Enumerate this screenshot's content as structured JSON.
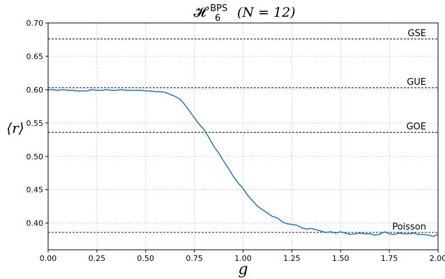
{
  "chart_data": {
    "type": "line",
    "title": {
      "symbol": "𝓗",
      "superscript": "BPS",
      "subscript": "6",
      "suffix": " (N = 12)"
    },
    "xlabel": "g",
    "ylabel": "⟨r⟩",
    "xlim": [
      0.0,
      2.0
    ],
    "ylim": [
      0.36,
      0.7
    ],
    "x_ticks": [
      0.0,
      0.25,
      0.5,
      0.75,
      1.0,
      1.25,
      1.5,
      1.75,
      2.0
    ],
    "x_tick_labels": [
      "0.00",
      "0.25",
      "0.50",
      "0.75",
      "1.00",
      "1.25",
      "1.50",
      "1.75",
      "2.00"
    ],
    "y_ticks": [
      0.4,
      0.45,
      0.5,
      0.55,
      0.6,
      0.65,
      0.7
    ],
    "y_tick_labels": [
      "0.40",
      "0.45",
      "0.50",
      "0.55",
      "0.60",
      "0.65",
      "0.70"
    ],
    "grid": true,
    "line_color": "#1f77b4",
    "reference_lines": [
      {
        "label": "GSE",
        "value": 0.676
      },
      {
        "label": "GUE",
        "value": 0.603
      },
      {
        "label": "GOE",
        "value": 0.536
      },
      {
        "label": "Poisson",
        "value": 0.386
      }
    ],
    "series": [
      {
        "x": [
          0.0,
          0.025,
          0.05,
          0.075,
          0.1,
          0.125,
          0.15,
          0.175,
          0.2,
          0.225,
          0.25,
          0.275,
          0.3,
          0.325,
          0.35,
          0.375,
          0.4,
          0.425,
          0.45,
          0.475,
          0.5,
          0.525,
          0.55,
          0.575,
          0.6,
          0.625,
          0.65,
          0.675,
          0.7,
          0.725,
          0.75,
          0.775,
          0.8,
          0.825,
          0.85,
          0.875,
          0.9,
          0.925,
          0.95,
          0.975,
          1.0,
          1.025,
          1.05,
          1.075,
          1.1,
          1.125,
          1.15,
          1.175,
          1.2,
          1.225,
          1.25,
          1.275,
          1.3,
          1.325,
          1.35,
          1.375,
          1.4,
          1.425,
          1.45,
          1.475,
          1.5,
          1.525,
          1.55,
          1.575,
          1.6,
          1.625,
          1.65,
          1.675,
          1.7,
          1.725,
          1.75,
          1.775,
          1.8,
          1.825,
          1.85,
          1.875,
          1.9,
          1.925,
          1.95,
          1.975,
          2.0
        ],
        "values": [
          0.6,
          0.6,
          0.599,
          0.6,
          0.599,
          0.599,
          0.598,
          0.598,
          0.598,
          0.6,
          0.599,
          0.599,
          0.6,
          0.599,
          0.599,
          0.6,
          0.599,
          0.599,
          0.599,
          0.599,
          0.598,
          0.598,
          0.597,
          0.597,
          0.596,
          0.593,
          0.59,
          0.586,
          0.578,
          0.568,
          0.558,
          0.548,
          0.54,
          0.528,
          0.515,
          0.505,
          0.493,
          0.482,
          0.47,
          0.46,
          0.452,
          0.441,
          0.433,
          0.425,
          0.42,
          0.415,
          0.41,
          0.408,
          0.402,
          0.399,
          0.398,
          0.397,
          0.393,
          0.391,
          0.392,
          0.39,
          0.388,
          0.386,
          0.387,
          0.385,
          0.387,
          0.385,
          0.383,
          0.384,
          0.385,
          0.384,
          0.384,
          0.382,
          0.383,
          0.387,
          0.384,
          0.383,
          0.385,
          0.384,
          0.384,
          0.385,
          0.383,
          0.383,
          0.382,
          0.38,
          0.383
        ]
      }
    ]
  }
}
